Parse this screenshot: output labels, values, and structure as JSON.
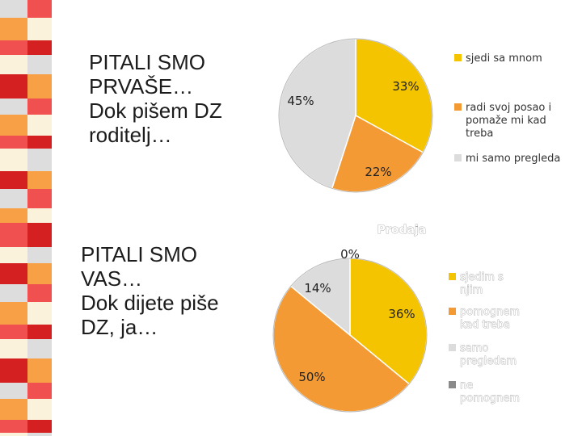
{
  "captions": {
    "first": [
      "PITALI SMO",
      "PRVAŠE…",
      "Dok pišem DZ",
      "roditelj…"
    ],
    "second": [
      "PITALI SMO",
      "VAS…",
      "Dok dijete piše",
      "DZ, ja…"
    ]
  },
  "colors": {
    "yellow": "#f5c400",
    "orange": "#f39a34",
    "gray": "#dcdcdc",
    "darkgray": "#8a8a8a",
    "stripe_red": "#f05050",
    "stripe_dark": "#d42020",
    "stripe_orange": "#f7a045",
    "stripe_gray": "#dddddd",
    "stripe_pale": "#fbf2dc"
  },
  "chart_data": [
    {
      "type": "pie",
      "title": "",
      "categories": [
        "sjedi sa mnom",
        "radi svoj posao i pomaže mi kad treba",
        "mi samo pregleda"
      ],
      "values": [
        33,
        22,
        45
      ],
      "labels": [
        "33%",
        "22%",
        "45%"
      ]
    },
    {
      "type": "pie",
      "title": "Prodaja",
      "categories": [
        "sjedim s njim",
        "pomognem kad treba",
        "samo pregledam",
        "ne pomognem"
      ],
      "values": [
        36,
        50,
        14,
        0
      ],
      "labels": [
        "36%",
        "50%",
        "14%",
        "0%"
      ]
    }
  ]
}
